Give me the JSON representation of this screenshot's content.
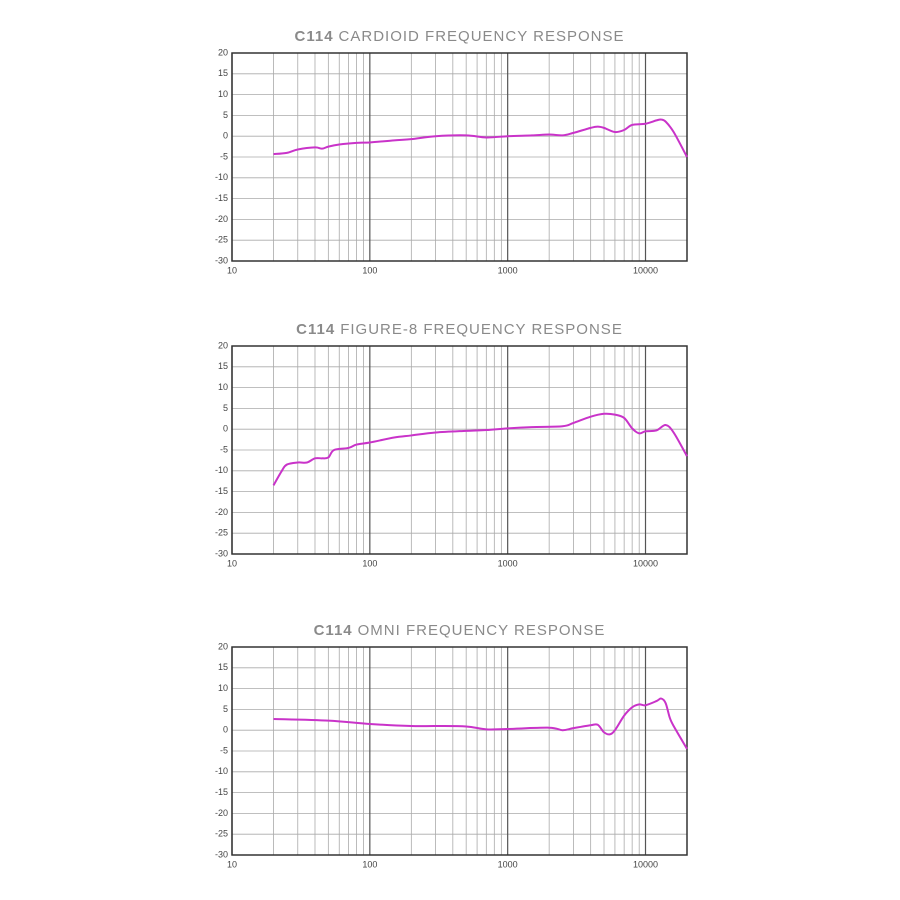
{
  "chart_data": [
    {
      "type": "line",
      "title_prefix": "C114",
      "title": "CARDIOID FREQUENCY RESPONSE",
      "log_x": true,
      "grid": true,
      "color": "#c933c9",
      "xlim": [
        10,
        20000
      ],
      "xticks": [
        10,
        100,
        1000,
        10000
      ],
      "minor_xticks": [
        20,
        30,
        40,
        50,
        60,
        70,
        80,
        90,
        200,
        300,
        400,
        500,
        600,
        700,
        800,
        900,
        2000,
        3000,
        4000,
        5000,
        6000,
        7000,
        8000,
        9000
      ],
      "ylim": [
        -30,
        20
      ],
      "yticks": [
        -30,
        -25,
        -20,
        -15,
        -10,
        -5,
        0,
        5,
        10,
        15,
        20
      ],
      "x": [
        20,
        25,
        30,
        40,
        45,
        50,
        60,
        80,
        100,
        150,
        200,
        300,
        500,
        700,
        1000,
        1500,
        2000,
        2500,
        3000,
        4000,
        4500,
        5000,
        6000,
        7000,
        8000,
        10000,
        12000,
        13000,
        14000,
        16000,
        20000
      ],
      "values": [
        -4.3,
        -4,
        -3.2,
        -2.7,
        -3,
        -2.5,
        -2,
        -1.6,
        -1.5,
        -1,
        -0.7,
        0,
        0.2,
        -0.3,
        0,
        0.2,
        0.4,
        0.2,
        0.8,
        2,
        2.3,
        2,
        1,
        1.5,
        2.7,
        3,
        3.8,
        4,
        3.5,
        1,
        -5
      ]
    },
    {
      "type": "line",
      "title_prefix": "C114",
      "title": "FIGURE-8 FREQUENCY RESPONSE",
      "log_x": true,
      "grid": true,
      "color": "#c933c9",
      "xlim": [
        10,
        20000
      ],
      "xticks": [
        10,
        100,
        1000,
        10000
      ],
      "minor_xticks": [
        20,
        30,
        40,
        50,
        60,
        70,
        80,
        90,
        200,
        300,
        400,
        500,
        600,
        700,
        800,
        900,
        2000,
        3000,
        4000,
        5000,
        6000,
        7000,
        8000,
        9000
      ],
      "ylim": [
        -30,
        20
      ],
      "yticks": [
        -30,
        -25,
        -20,
        -15,
        -10,
        -5,
        0,
        5,
        10,
        15,
        20
      ],
      "x": [
        20,
        23,
        25,
        30,
        35,
        40,
        45,
        50,
        55,
        70,
        80,
        100,
        150,
        200,
        300,
        500,
        700,
        1000,
        1500,
        2500,
        3000,
        4000,
        5000,
        6000,
        7000,
        8000,
        9000,
        10000,
        12000,
        14000,
        16000,
        20000
      ],
      "values": [
        -13.5,
        -10,
        -8.5,
        -8,
        -8,
        -7,
        -7,
        -6.8,
        -5,
        -4.5,
        -3.7,
        -3.2,
        -2,
        -1.5,
        -0.8,
        -0.4,
        -0.2,
        0.2,
        0.5,
        0.7,
        1.5,
        3,
        3.7,
        3.5,
        2.7,
        0.2,
        -1,
        -0.5,
        -0.3,
        1,
        -0.8,
        -6.5
      ]
    },
    {
      "type": "line",
      "title_prefix": "C114",
      "title": "OMNI FREQUENCY RESPONSE",
      "log_x": true,
      "grid": true,
      "color": "#c933c9",
      "xlim": [
        10,
        20000
      ],
      "xticks": [
        10,
        100,
        1000,
        10000
      ],
      "minor_xticks": [
        20,
        30,
        40,
        50,
        60,
        70,
        80,
        90,
        200,
        300,
        400,
        500,
        600,
        700,
        800,
        900,
        2000,
        3000,
        4000,
        5000,
        6000,
        7000,
        8000,
        9000
      ],
      "ylim": [
        -30,
        20
      ],
      "yticks": [
        -30,
        -25,
        -20,
        -15,
        -10,
        -5,
        0,
        5,
        10,
        15,
        20
      ],
      "x": [
        20,
        50,
        100,
        200,
        300,
        500,
        700,
        1000,
        2000,
        2500,
        3000,
        4000,
        4500,
        5000,
        5500,
        6000,
        7000,
        8000,
        9000,
        10000,
        12000,
        13000,
        14000,
        15000,
        16000,
        20000
      ],
      "values": [
        2.7,
        2.3,
        1.5,
        1,
        1,
        0.9,
        0.2,
        0.3,
        0.6,
        0,
        0.5,
        1.2,
        1.3,
        -0.5,
        -1,
        0,
        3.5,
        5.5,
        6.2,
        6,
        7,
        7.6,
        6.5,
        3,
        1,
        -4.5
      ]
    }
  ]
}
